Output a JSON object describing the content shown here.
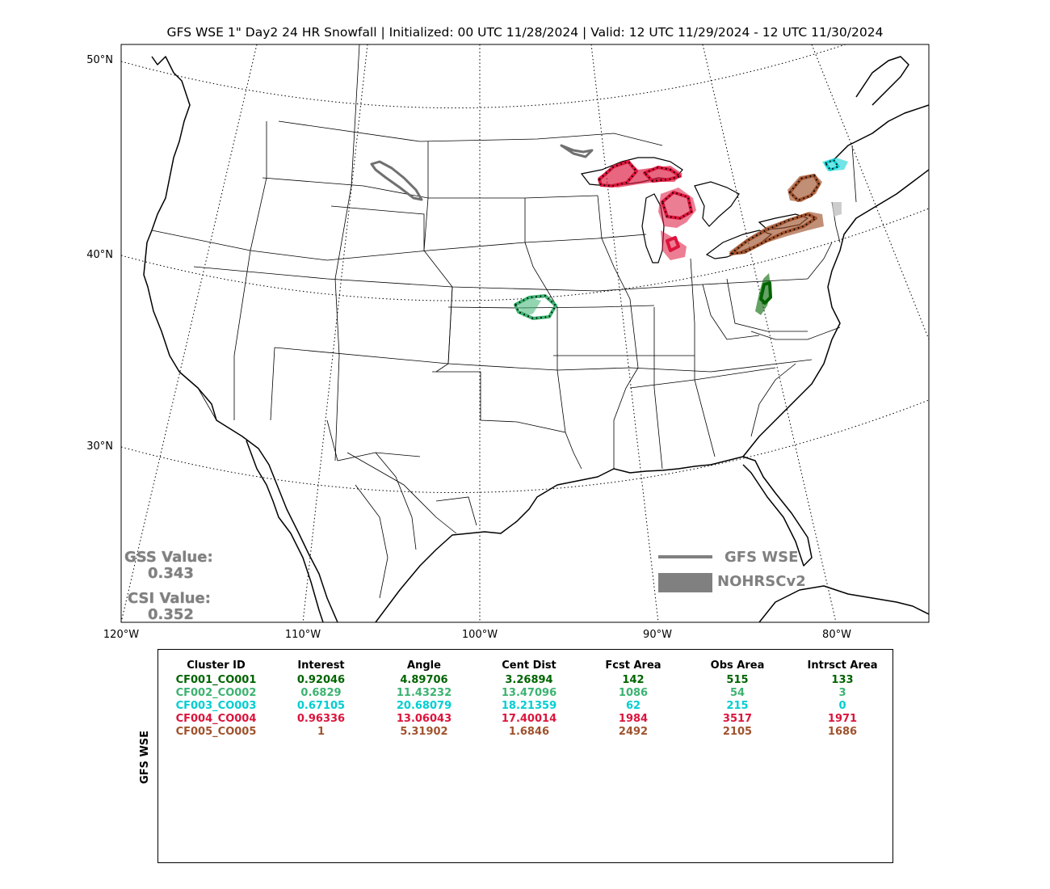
{
  "title": "GFS WSE 1\" Day2 24 HR Snowfall | Initialized: 00 UTC 11/28/2024 | Valid: 12 UTC 11/29/2024 - 12 UTC 11/30/2024",
  "map": {
    "lat_labels": [
      "50°N",
      "40°N",
      "30°N"
    ],
    "lon_labels": [
      "120°W",
      "110°W",
      "100°W",
      "90°W",
      "80°W"
    ]
  },
  "stats": {
    "gss_label": "GSS Value:",
    "gss_value": "0.343",
    "csi_label": "CSI Value:",
    "csi_value": "0.352"
  },
  "legend": {
    "forecast_label": "GFS WSE",
    "observed_label": "NOHRSCv2",
    "forecast_color": "#808080",
    "observed_color": "#808080"
  },
  "table": {
    "side_label": "GFS WSE",
    "headers": [
      "Cluster ID",
      "Interest",
      "Angle",
      "Cent Dist",
      "Fcst Area",
      "Obs Area",
      "Intrsct Area"
    ],
    "rows": [
      {
        "color": "#006400",
        "cells": [
          "CF001_CO001",
          "0.92046",
          "4.89706",
          "3.26894",
          "142",
          "515",
          "133"
        ]
      },
      {
        "color": "#3cb371",
        "cells": [
          "CF002_CO002",
          "0.6829",
          "11.43232",
          "13.47096",
          "1086",
          "54",
          "3"
        ]
      },
      {
        "color": "#00ced1",
        "cells": [
          "CF003_CO003",
          "0.67105",
          "20.68079",
          "18.21359",
          "62",
          "215",
          "0"
        ]
      },
      {
        "color": "#dc143c",
        "cells": [
          "CF004_CO004",
          "0.96336",
          "13.06043",
          "17.40014",
          "1984",
          "3517",
          "1971"
        ]
      },
      {
        "color": "#a0522d",
        "cells": [
          "CF005_CO005",
          "1",
          "5.31902",
          "1.6846",
          "2492",
          "2105",
          "1686"
        ]
      }
    ]
  }
}
